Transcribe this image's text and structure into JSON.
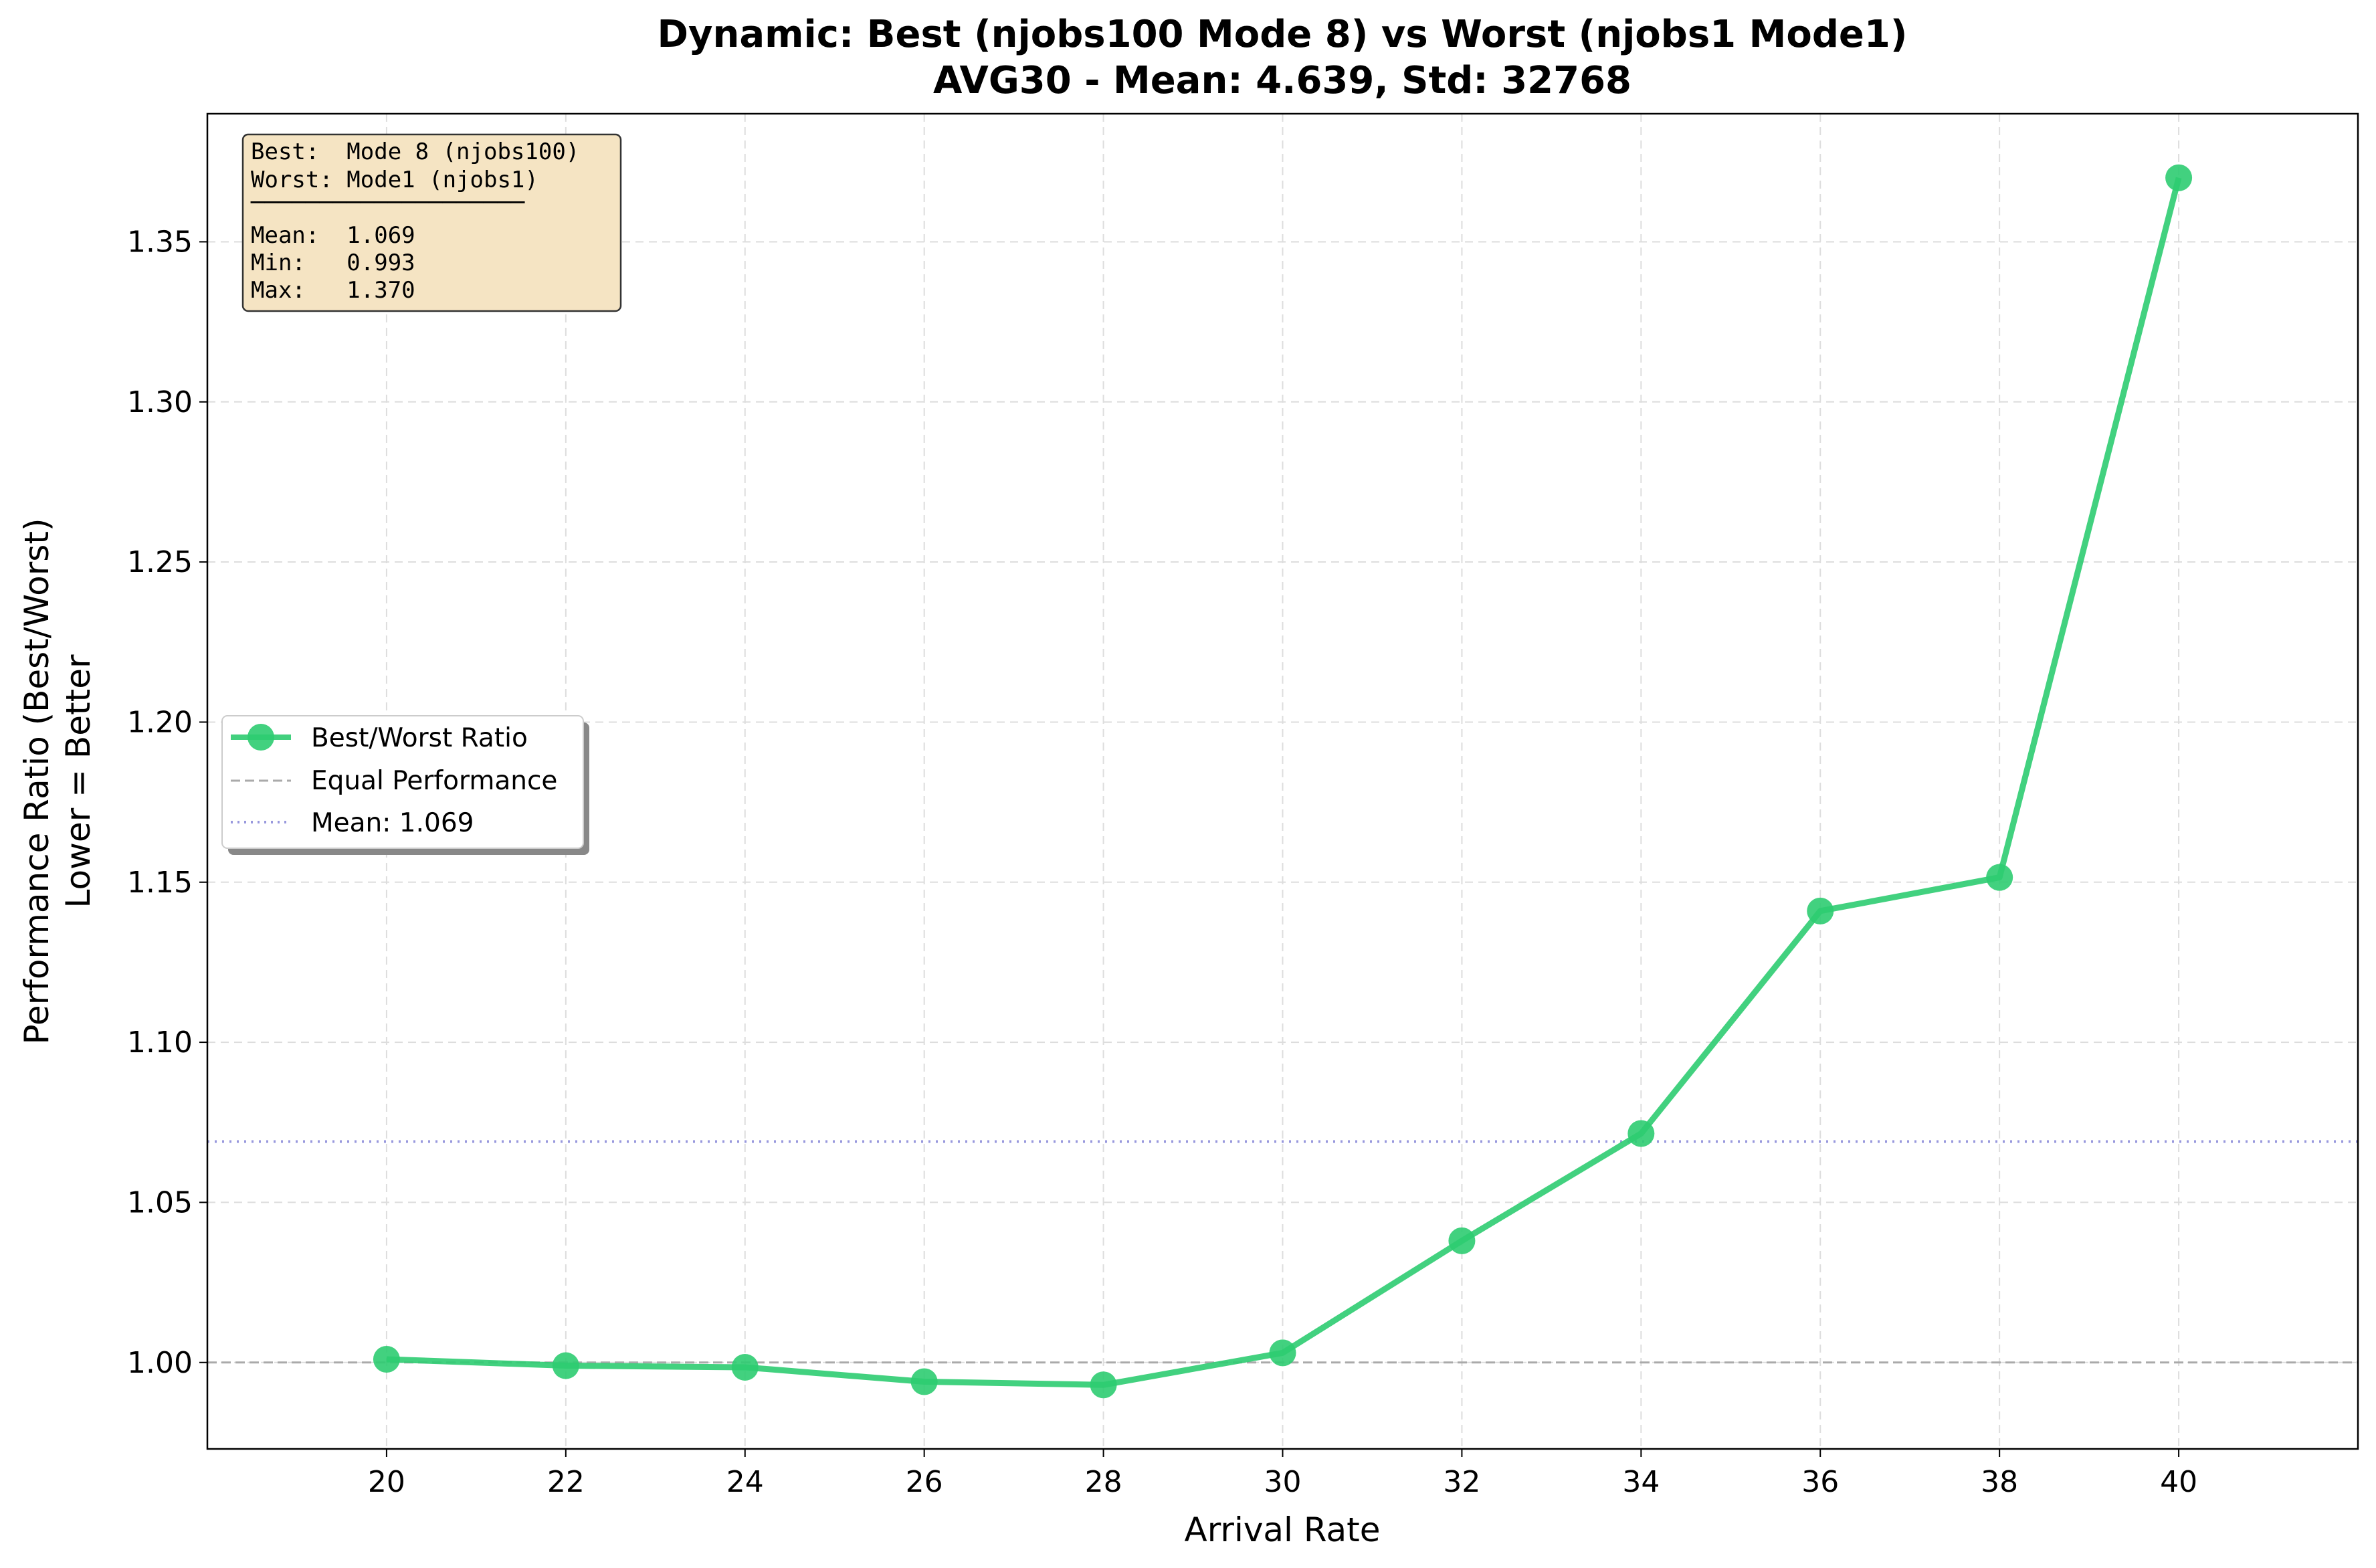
{
  "chart_data": {
    "type": "line",
    "title": "Dynamic: Best (njobs100 Mode 8) vs Worst (njobs1 Mode1)",
    "subtitle": "AVG30 - Mean: 4.639, Std: 32768",
    "xlabel": "Arrival Rate",
    "ylabel_line1": "Performance Ratio (Best/Worst)",
    "ylabel_line2": "Lower = Better",
    "xlim": [
      18,
      42
    ],
    "ylim": [
      0.973,
      1.39
    ],
    "x_ticks": [
      20,
      22,
      24,
      26,
      28,
      30,
      32,
      34,
      36,
      38,
      40
    ],
    "y_ticks": [
      1.0,
      1.05,
      1.1,
      1.15,
      1.2,
      1.25,
      1.3,
      1.35
    ],
    "y_tick_labels": [
      "1.00",
      "1.05",
      "1.10",
      "1.15",
      "1.20",
      "1.25",
      "1.30",
      "1.35"
    ],
    "grid": true,
    "series": [
      {
        "name": "Best/Worst Ratio",
        "color": "#2ecc71",
        "x": [
          20,
          22,
          24,
          26,
          28,
          30,
          32,
          34,
          36,
          38,
          40
        ],
        "values": [
          1.001,
          0.999,
          0.9985,
          0.994,
          0.993,
          1.003,
          1.038,
          1.0715,
          1.141,
          1.1515,
          1.37
        ]
      }
    ],
    "reference_lines": [
      {
        "name": "Equal Performance",
        "value": 1.0,
        "color": "#aaaaaa",
        "style": "dashed"
      },
      {
        "name": "Mean: 1.069",
        "value": 1.069,
        "color": "#9999dd",
        "style": "dotted"
      }
    ],
    "legend": {
      "placement": "center-left",
      "entries": [
        "Best/Worst Ratio",
        "Equal Performance",
        "Mean: 1.069"
      ]
    },
    "stats_box": {
      "placement": "top-left",
      "lines": [
        "Best:  Mode 8 (njobs100)",
        "Worst: Mode1 (njobs1)",
        "────────────────────",
        "Mean:  1.069",
        "Min:   0.993",
        "Max:   1.370"
      ]
    }
  }
}
